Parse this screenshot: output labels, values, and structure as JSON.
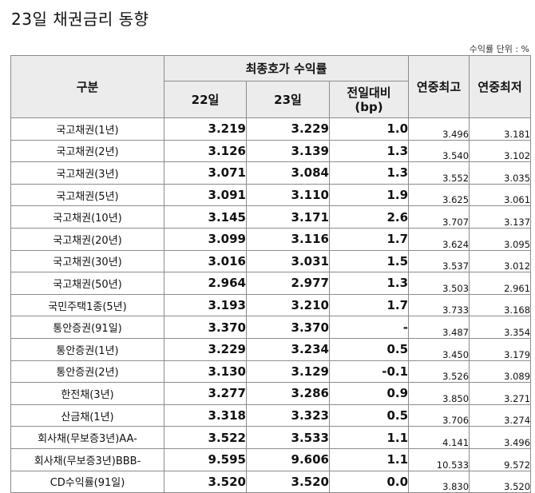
{
  "title": "23일 채권금리 동향",
  "unit": "수익률 단위 : %",
  "headers": {
    "category": "구분",
    "closing_yield": "최종호가 수익률",
    "day22": "22일",
    "day23": "23일",
    "change_line1": "전일대비",
    "change_line2": "(bp)",
    "year_high": "연중최고",
    "year_low": "연중최저"
  },
  "rows": [
    {
      "name": "국고채권(1년)",
      "d22": "3.219",
      "d23": "3.229",
      "chg": "1.0",
      "high": "3.496",
      "low": "3.181"
    },
    {
      "name": "국고채권(2년)",
      "d22": "3.126",
      "d23": "3.139",
      "chg": "1.3",
      "high": "3.540",
      "low": "3.102"
    },
    {
      "name": "국고채권(3년)",
      "d22": "3.071",
      "d23": "3.084",
      "chg": "1.3",
      "high": "3.552",
      "low": "3.035"
    },
    {
      "name": "국고채권(5년)",
      "d22": "3.091",
      "d23": "3.110",
      "chg": "1.9",
      "high": "3.625",
      "low": "3.061"
    },
    {
      "name": "국고채권(10년)",
      "d22": "3.145",
      "d23": "3.171",
      "chg": "2.6",
      "high": "3.707",
      "low": "3.137"
    },
    {
      "name": "국고채권(20년)",
      "d22": "3.099",
      "d23": "3.116",
      "chg": "1.7",
      "high": "3.624",
      "low": "3.095"
    },
    {
      "name": "국고채권(30년)",
      "d22": "3.016",
      "d23": "3.031",
      "chg": "1.5",
      "high": "3.537",
      "low": "3.012"
    },
    {
      "name": "국고채권(50년)",
      "d22": "2.964",
      "d23": "2.977",
      "chg": "1.3",
      "high": "3.503",
      "low": "2.961"
    },
    {
      "name": "국민주택1종(5년)",
      "d22": "3.193",
      "d23": "3.210",
      "chg": "1.7",
      "high": "3.733",
      "low": "3.168"
    },
    {
      "name": "통안증권(91일)",
      "d22": "3.370",
      "d23": "3.370",
      "chg": "-",
      "high": "3.487",
      "low": "3.354"
    },
    {
      "name": "통안증권(1년)",
      "d22": "3.229",
      "d23": "3.234",
      "chg": "0.5",
      "high": "3.450",
      "low": "3.179"
    },
    {
      "name": "통안증권(2년)",
      "d22": "3.130",
      "d23": "3.129",
      "chg": "-0.1",
      "high": "3.526",
      "low": "3.089"
    },
    {
      "name": "한전채(3년)",
      "d22": "3.277",
      "d23": "3.286",
      "chg": "0.9",
      "high": "3.850",
      "low": "3.271"
    },
    {
      "name": "산금채(1년)",
      "d22": "3.318",
      "d23": "3.323",
      "chg": "0.5",
      "high": "3.706",
      "low": "3.274"
    },
    {
      "name": "회사채(무보증3년)AA-",
      "d22": "3.522",
      "d23": "3.533",
      "chg": "1.1",
      "high": "4.141",
      "low": "3.496"
    },
    {
      "name": "회사채(무보증3년)BBB-",
      "d22": "9.595",
      "d23": "9.606",
      "chg": "1.1",
      "high": "10.533",
      "low": "9.572"
    },
    {
      "name": "CD수익률(91일)",
      "d22": "3.520",
      "d23": "3.520",
      "chg": "0.0",
      "high": "3.830",
      "low": "3.520"
    }
  ]
}
